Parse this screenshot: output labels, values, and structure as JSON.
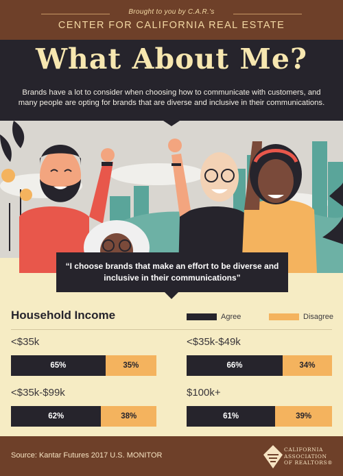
{
  "header": {
    "subtitle": "Brought to you by C.A.R.'s",
    "org": "CENTER FOR CALIFORNIA REAL ESTATE"
  },
  "hero": {
    "title": "What About Me?",
    "intro": "Brands have a lot to consider when choosing how to communicate with customers, and many people are opting for brands that are diverse and inclusive in their communications."
  },
  "quote": "“I choose brands that make an effort to be diverse and inclusive in their communications”",
  "section": {
    "title": "Household Income",
    "legend": {
      "agree": "Agree",
      "disagree": "Disagree"
    }
  },
  "colors": {
    "agree": "#26242c",
    "disagree": "#f4b35e",
    "brown": "#6e4029",
    "cream": "#f6ecc4"
  },
  "groups": [
    {
      "label": "<$35k",
      "agree": 65,
      "agree_text": "65%",
      "disagree": 35,
      "disagree_text": "35%"
    },
    {
      "label": "<$35k-$49k",
      "agree": 66,
      "agree_text": "66%",
      "disagree": 34,
      "disagree_text": "34%"
    },
    {
      "label": "<$35k-$99k",
      "agree": 62,
      "agree_text": "62%",
      "disagree": 38,
      "disagree_text": "38%"
    },
    {
      "label": "$100k+",
      "agree": 61,
      "agree_text": "61%",
      "disagree": 39,
      "disagree_text": "39%"
    }
  ],
  "footer": {
    "source": "Source: Kantar Futures 2017 U.S. MONITOR",
    "logo": {
      "line1": "CALIFORNIA",
      "line2": "ASSOCIATION",
      "line3": "OF REALTORS®"
    }
  }
}
